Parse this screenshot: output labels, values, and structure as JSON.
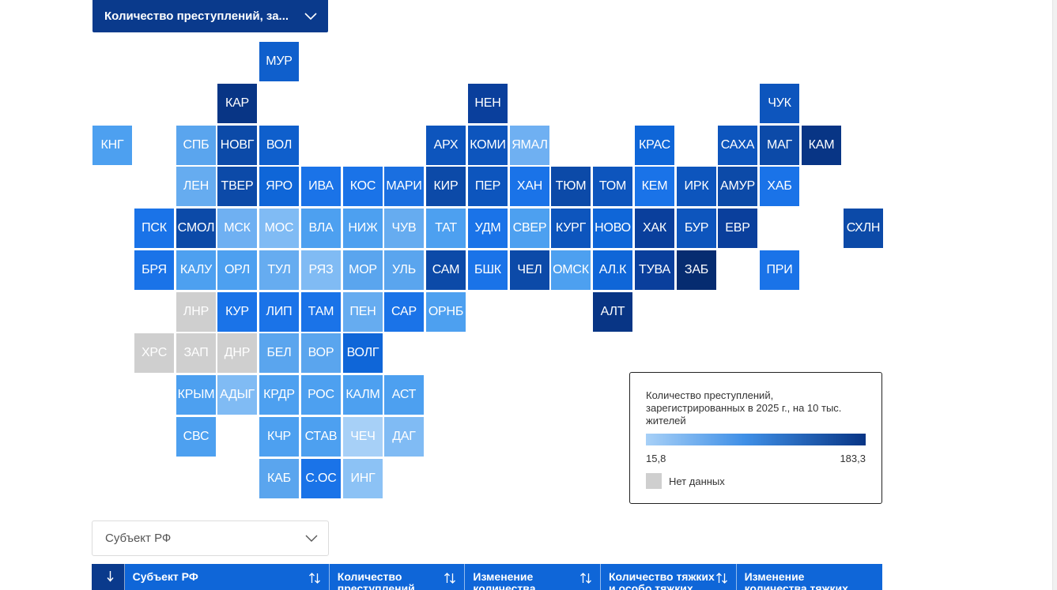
{
  "metric_dropdown": {
    "label": "Количество преступлений, за...",
    "icon": "chevron-down-icon"
  },
  "tiles": [
    {
      "code": "МУР",
      "row": 0,
      "col": 4,
      "color": "#0f5fcc"
    },
    {
      "code": "КАР",
      "row": 1,
      "col": 3,
      "color": "#083585"
    },
    {
      "code": "НЕН",
      "row": 1,
      "col": 9,
      "color": "#0a3f9c"
    },
    {
      "code": "ЧУК",
      "row": 1,
      "col": 16,
      "color": "#0d55bd"
    },
    {
      "code": "КНГ",
      "row": 2,
      "col": 0,
      "color": "#4da0f0"
    },
    {
      "code": "СПБ",
      "row": 2,
      "col": 2,
      "color": "#5aa5ee"
    },
    {
      "code": "НОВГ",
      "row": 2,
      "col": 3,
      "color": "#0c4aa8"
    },
    {
      "code": "ВОЛ",
      "row": 2,
      "col": 4,
      "color": "#0f5fcc"
    },
    {
      "code": "АРХ",
      "row": 2,
      "col": 8,
      "color": "#0d55bd"
    },
    {
      "code": "КОМИ",
      "row": 2,
      "col": 9,
      "color": "#0d55bd"
    },
    {
      "code": "ЯМАЛ",
      "row": 2,
      "col": 10,
      "color": "#6fb0f2"
    },
    {
      "code": "КРАС",
      "row": 2,
      "col": 13,
      "color": "#0f66d8"
    },
    {
      "code": "САХА",
      "row": 2,
      "col": 15,
      "color": "#0d55bd"
    },
    {
      "code": "МАГ",
      "row": 2,
      "col": 16,
      "color": "#0c4aa8"
    },
    {
      "code": "КАМ",
      "row": 2,
      "col": 17,
      "color": "#083585"
    },
    {
      "code": "ЛЕН",
      "row": 3,
      "col": 2,
      "color": "#66acf0"
    },
    {
      "code": "ТВЕР",
      "row": 3,
      "col": 3,
      "color": "#0c4aa8"
    },
    {
      "code": "ЯРО",
      "row": 3,
      "col": 4,
      "color": "#0f66d8"
    },
    {
      "code": "ИВА",
      "row": 3,
      "col": 5,
      "color": "#1a73e8"
    },
    {
      "code": "КОС",
      "row": 3,
      "col": 6,
      "color": "#1a73e8"
    },
    {
      "code": "МАРИ",
      "row": 3,
      "col": 7,
      "color": "#1a6fe0"
    },
    {
      "code": "КИР",
      "row": 3,
      "col": 8,
      "color": "#0c4aa8"
    },
    {
      "code": "ПЕР",
      "row": 3,
      "col": 9,
      "color": "#0d55bd"
    },
    {
      "code": "ХАН",
      "row": 3,
      "col": 10,
      "color": "#1a73e8"
    },
    {
      "code": "ТЮМ",
      "row": 3,
      "col": 11,
      "color": "#0c4aa8"
    },
    {
      "code": "ТОМ",
      "row": 3,
      "col": 12,
      "color": "#0d55bd"
    },
    {
      "code": "КЕМ",
      "row": 3,
      "col": 13,
      "color": "#1a73e8"
    },
    {
      "code": "ИРК",
      "row": 3,
      "col": 14,
      "color": "#0d55bd"
    },
    {
      "code": "АМУР",
      "row": 3,
      "col": 15,
      "color": "#0c4aa8"
    },
    {
      "code": "ХАБ",
      "row": 3,
      "col": 16,
      "color": "#1a73e8"
    },
    {
      "code": "ПСК",
      "row": 4,
      "col": 1,
      "color": "#1a73e8"
    },
    {
      "code": "СМОЛ",
      "row": 4,
      "col": 2,
      "color": "#0c4aa8"
    },
    {
      "code": "МСК",
      "row": 4,
      "col": 3,
      "color": "#6fb0f2"
    },
    {
      "code": "МОС",
      "row": 4,
      "col": 4,
      "color": "#80bbf4"
    },
    {
      "code": "ВЛА",
      "row": 4,
      "col": 5,
      "color": "#4da0f0"
    },
    {
      "code": "НИЖ",
      "row": 4,
      "col": 6,
      "color": "#4da0f0"
    },
    {
      "code": "ЧУВ",
      "row": 4,
      "col": 7,
      "color": "#66acf0"
    },
    {
      "code": "ТАТ",
      "row": 4,
      "col": 8,
      "color": "#4da0f0"
    },
    {
      "code": "УДМ",
      "row": 4,
      "col": 9,
      "color": "#1a73e8"
    },
    {
      "code": "СВЕР",
      "row": 4,
      "col": 10,
      "color": "#4da0f0"
    },
    {
      "code": "КУРГ",
      "row": 4,
      "col": 11,
      "color": "#0d55bd"
    },
    {
      "code": "НОВО",
      "row": 4,
      "col": 12,
      "color": "#0f66d8"
    },
    {
      "code": "ХАК",
      "row": 4,
      "col": 13,
      "color": "#0a3f9c"
    },
    {
      "code": "БУР",
      "row": 4,
      "col": 14,
      "color": "#0d55bd"
    },
    {
      "code": "ЕВР",
      "row": 4,
      "col": 15,
      "color": "#0a3f9c"
    },
    {
      "code": "СХЛН",
      "row": 4,
      "col": 18,
      "color": "#0c4aa8"
    },
    {
      "code": "БРЯ",
      "row": 5,
      "col": 1,
      "color": "#1a73e8"
    },
    {
      "code": "КАЛУ",
      "row": 5,
      "col": 2,
      "color": "#4da0f0"
    },
    {
      "code": "ОРЛ",
      "row": 5,
      "col": 3,
      "color": "#4da0f0"
    },
    {
      "code": "ТУЛ",
      "row": 5,
      "col": 4,
      "color": "#66acf0"
    },
    {
      "code": "РЯЗ",
      "row": 5,
      "col": 5,
      "color": "#80bbf4"
    },
    {
      "code": "МОР",
      "row": 5,
      "col": 6,
      "color": "#5aa5ee"
    },
    {
      "code": "УЛЬ",
      "row": 5,
      "col": 7,
      "color": "#5aa5ee"
    },
    {
      "code": "САМ",
      "row": 5,
      "col": 8,
      "color": "#0c4aa8"
    },
    {
      "code": "БШК",
      "row": 5,
      "col": 9,
      "color": "#1a73e8"
    },
    {
      "code": "ЧЕЛ",
      "row": 5,
      "col": 10,
      "color": "#0c4aa8"
    },
    {
      "code": "ОМСК",
      "row": 5,
      "col": 11,
      "color": "#4da0f0"
    },
    {
      "code": "АЛ.К",
      "row": 5,
      "col": 12,
      "color": "#0f66d8"
    },
    {
      "code": "ТУВА",
      "row": 5,
      "col": 13,
      "color": "#0a3f9c"
    },
    {
      "code": "ЗАБ",
      "row": 5,
      "col": 14,
      "color": "#062c70"
    },
    {
      "code": "ПРИ",
      "row": 5,
      "col": 16,
      "color": "#1a73e8"
    },
    {
      "code": "ЛНР",
      "row": 6,
      "col": 2,
      "color": "#cfcfcf"
    },
    {
      "code": "КУР",
      "row": 6,
      "col": 3,
      "color": "#1a73e8"
    },
    {
      "code": "ЛИП",
      "row": 6,
      "col": 4,
      "color": "#1a73e8"
    },
    {
      "code": "ТАМ",
      "row": 6,
      "col": 5,
      "color": "#1a73e8"
    },
    {
      "code": "ПЕН",
      "row": 6,
      "col": 6,
      "color": "#66acf0"
    },
    {
      "code": "САР",
      "row": 6,
      "col": 7,
      "color": "#1a73e8"
    },
    {
      "code": "ОРНБ",
      "row": 6,
      "col": 8,
      "color": "#4da0f0"
    },
    {
      "code": "АЛТ",
      "row": 6,
      "col": 12,
      "color": "#083585"
    },
    {
      "code": "ХРС",
      "row": 7,
      "col": 1,
      "color": "#cfcfcf"
    },
    {
      "code": "ЗАП",
      "row": 7,
      "col": 2,
      "color": "#cfcfcf"
    },
    {
      "code": "ДНР",
      "row": 7,
      "col": 3,
      "color": "#cfcfcf"
    },
    {
      "code": "БЕЛ",
      "row": 7,
      "col": 4,
      "color": "#5aa5ee"
    },
    {
      "code": "ВОР",
      "row": 7,
      "col": 5,
      "color": "#5aa5ee"
    },
    {
      "code": "ВОЛГ",
      "row": 7,
      "col": 6,
      "color": "#0f66d8"
    },
    {
      "code": "КРЫМ",
      "row": 8,
      "col": 2,
      "color": "#4da0f0"
    },
    {
      "code": "АДЫГ",
      "row": 8,
      "col": 3,
      "color": "#80bbf4"
    },
    {
      "code": "КРДР",
      "row": 8,
      "col": 4,
      "color": "#4da0f0"
    },
    {
      "code": "РОС",
      "row": 8,
      "col": 5,
      "color": "#4da0f0"
    },
    {
      "code": "КАЛМ",
      "row": 8,
      "col": 6,
      "color": "#4da0f0"
    },
    {
      "code": "АСТ",
      "row": 8,
      "col": 7,
      "color": "#4da0f0"
    },
    {
      "code": "СВС",
      "row": 9,
      "col": 2,
      "color": "#4da0f0"
    },
    {
      "code": "КЧР",
      "row": 9,
      "col": 4,
      "color": "#4da0f0"
    },
    {
      "code": "СТАВ",
      "row": 9,
      "col": 5,
      "color": "#4da0f0"
    },
    {
      "code": "ЧЕЧ",
      "row": 9,
      "col": 6,
      "color": "#a7d0f7"
    },
    {
      "code": "ДАГ",
      "row": 9,
      "col": 7,
      "color": "#80bbf4"
    },
    {
      "code": "КАБ",
      "row": 10,
      "col": 4,
      "color": "#5aa5ee"
    },
    {
      "code": "С.ОС",
      "row": 10,
      "col": 5,
      "color": "#1a73e8"
    },
    {
      "code": "ИНГ",
      "row": 10,
      "col": 6,
      "color": "#8cc2f5"
    }
  ],
  "legend": {
    "title": "Количество преступлений, зарегистрированных в 2025 г., на 10 тыс. жителей",
    "min_label": "15,8",
    "max_label": "183,3",
    "gradient_start": "#a7d0f7",
    "gradient_end": "#083585",
    "no_data_label": "Нет данных",
    "no_data_color": "#cfcfcf"
  },
  "subject_select": {
    "placeholder": "Субъект РФ",
    "icon": "chevron-down-icon"
  },
  "table": {
    "sort_indicator": "↓",
    "columns": [
      {
        "label": "Субъект РФ"
      },
      {
        "label": "Количество\nпреступлений"
      },
      {
        "label": "Изменение\nколичества"
      },
      {
        "label": "Количество тяжких\nи особо тяжких"
      },
      {
        "label": "Изменение\nколичества тяжких"
      }
    ]
  }
}
